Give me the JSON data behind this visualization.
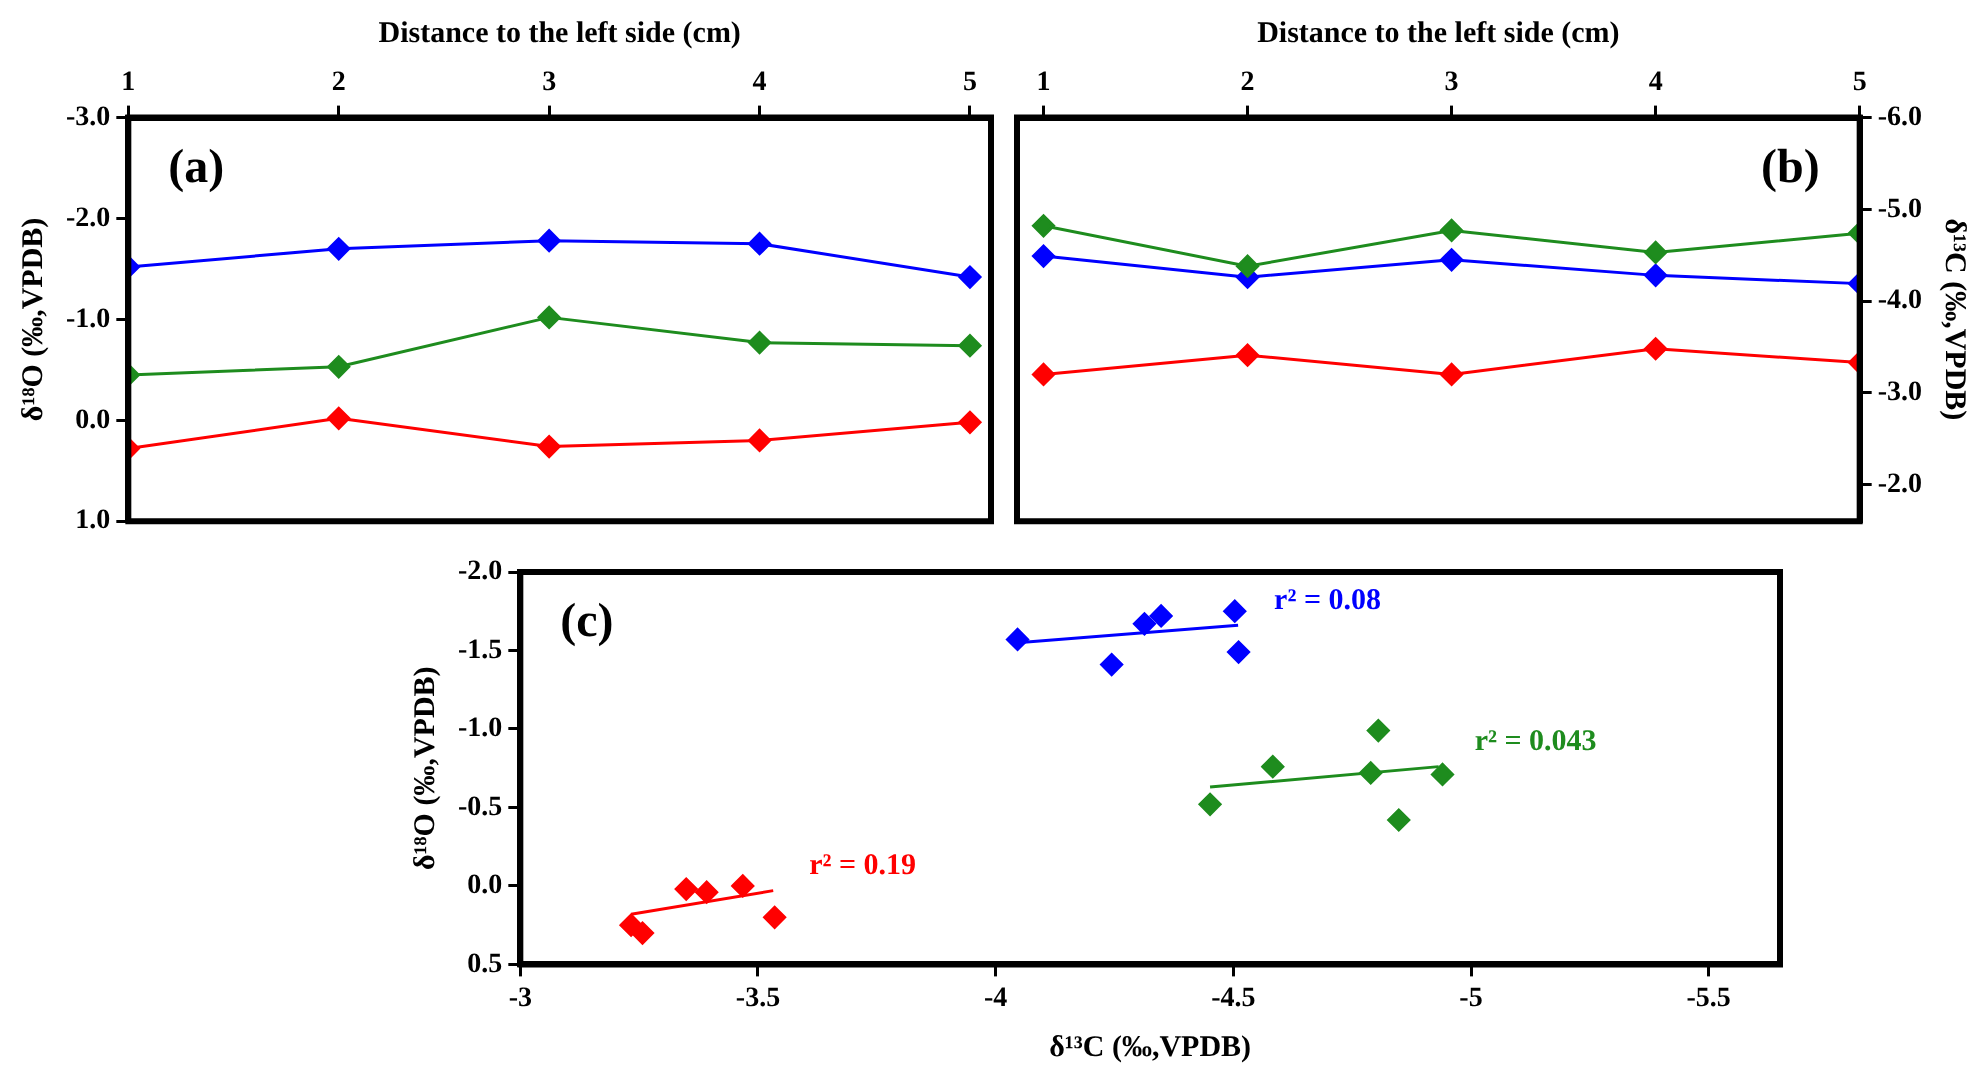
{
  "chart_data": [
    {
      "type": "line",
      "xlabel": "Distance to the left side (cm)",
      "ylabel": "δ¹⁸O (‰,VPDB)",
      "x": [
        1,
        2,
        3,
        4,
        5
      ],
      "xlim": [
        1,
        5.1
      ],
      "xticks": [
        1,
        2,
        3,
        4,
        5
      ],
      "ylim": [
        1,
        -3
      ],
      "yticks": [
        {
          "value": -3,
          "label": "-3.0"
        },
        {
          "value": -2,
          "label": "-2.0"
        },
        {
          "value": -1,
          "label": "-1.0"
        },
        {
          "value": 0,
          "label": "0.0"
        },
        {
          "value": 1,
          "label": "1.0"
        }
      ],
      "grid": false,
      "legend": false,
      "marker": "diamond",
      "line_style": "solid",
      "annotations": [
        "(a)"
      ],
      "series": [
        {
          "color": "#0000ff",
          "values": [
            -1.52,
            -1.7,
            -1.78,
            -1.75,
            -1.42
          ]
        },
        {
          "color": "#1e8c1e",
          "values": [
            -0.45,
            -0.53,
            -1.02,
            -0.77,
            -0.74
          ]
        },
        {
          "color": "#ff0000",
          "values": [
            0.28,
            -0.02,
            0.26,
            0.2,
            0.02
          ]
        }
      ]
    },
    {
      "type": "line",
      "xlabel": "Distance to the left side (cm)",
      "y2label": "δ¹³C (‰,VPDB)",
      "x": [
        1,
        2,
        3,
        4,
        5
      ],
      "xlim": [
        0.87,
        5
      ],
      "xticks": [
        1,
        2,
        3,
        4,
        5
      ],
      "y2lim": [
        -1.6,
        -6
      ],
      "y2ticks": [
        {
          "value": -6,
          "label": "-6.0"
        },
        {
          "value": -5,
          "label": "-5.0"
        },
        {
          "value": -4,
          "label": "-4.0"
        },
        {
          "value": -3,
          "label": "-3.0"
        },
        {
          "value": -2,
          "label": "-2.0"
        }
      ],
      "grid": false,
      "legend": false,
      "marker": "diamond",
      "line_style": "solid",
      "annotations": [
        "(b)"
      ],
      "series": [
        {
          "color": "#1e8c1e",
          "axis": "y2",
          "values": [
            -4.82,
            -4.38,
            -4.77,
            -4.53,
            -4.74
          ]
        },
        {
          "color": "#0000ff",
          "axis": "y2",
          "values": [
            -4.49,
            -4.26,
            -4.45,
            -4.28,
            -4.19
          ]
        },
        {
          "color": "#ff0000",
          "axis": "y2",
          "values": [
            -3.2,
            -3.41,
            -3.2,
            -3.48,
            -3.33
          ]
        }
      ]
    },
    {
      "type": "scatter",
      "xlabel": "δ¹³C (‰,VPDB)",
      "ylabel": "δ¹⁸O (‰,VPDB)",
      "xlim": [
        -3,
        -5.65
      ],
      "xticks": [
        -3,
        -3.5,
        -4,
        -4.5,
        -5,
        -5.5
      ],
      "ylim": [
        0.5,
        -2
      ],
      "yticks": [
        {
          "value": -2,
          "label": "-2.0"
        },
        -1.5,
        {
          "value": -1,
          "label": "-1.0"
        },
        -0.5,
        {
          "value": 0,
          "label": "0.0"
        },
        0.5
      ],
      "grid": false,
      "legend": false,
      "marker": "diamond",
      "annotations": [
        "(c)",
        "r² = 0.19",
        "r² = 0.08",
        "r² = 0.043"
      ],
      "series": [
        {
          "color": "#ff0000",
          "x": [
            -3.233,
            -3.257,
            -3.349,
            -3.392,
            -3.468,
            -3.535
          ],
          "values": [
            0.25,
            0.3,
            0.02,
            0.04,
            0,
            0.2
          ]
        },
        {
          "color": "#0000ff",
          "x": [
            -4.046,
            -4.244,
            -4.313,
            -4.348,
            -4.503,
            -4.511
          ],
          "values": [
            -1.57,
            -1.41,
            -1.67,
            -1.72,
            -1.75,
            -1.49
          ]
        },
        {
          "color": "#1e8c1e",
          "x": [
            -4.451,
            -4.583,
            -4.789,
            -4.805,
            -4.848,
            -4.94
          ],
          "values": [
            -0.52,
            -0.76,
            -0.72,
            -0.99,
            -0.42,
            -0.71
          ]
        },
        {
          "type": "line",
          "color": "#ff0000",
          "marker": "none",
          "x": [
            -3.233,
            -3.532
          ],
          "values": [
            0.18,
            0.03
          ]
        },
        {
          "type": "line",
          "color": "#0000ff",
          "marker": "none",
          "x": [
            -4.046,
            -4.51
          ],
          "values": [
            -1.55,
            -1.66
          ]
        },
        {
          "type": "line",
          "color": "#1e8c1e",
          "marker": "none",
          "x": [
            -4.451,
            -4.932
          ],
          "values": [
            -0.63,
            -0.76
          ]
        }
      ]
    }
  ]
}
